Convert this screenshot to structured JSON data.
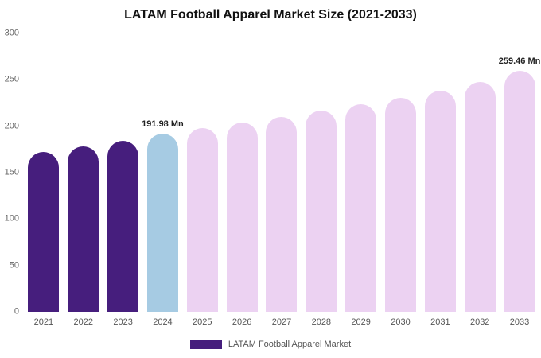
{
  "chart_data": {
    "type": "bar",
    "title": "LATAM Football Apparel Market Size (2021-2033)",
    "categories": [
      "2021",
      "2022",
      "2023",
      "2024",
      "2025",
      "2026",
      "2027",
      "2028",
      "2029",
      "2030",
      "2031",
      "2032",
      "2033"
    ],
    "values": [
      172,
      178,
      184,
      191.98,
      198,
      204,
      210,
      216.5,
      223.5,
      230.5,
      238.5,
      247.5,
      259.46
    ],
    "ylim": [
      0,
      300
    ],
    "yticks": [
      0,
      50,
      100,
      150,
      200,
      250,
      300
    ],
    "grid": false,
    "legend": "LATAM Football Apparel Market",
    "legend_position": "bottom",
    "annotations": [
      {
        "index": 3,
        "text": "191.98 Mn"
      },
      {
        "index": 12,
        "text": "259.46 Mn"
      }
    ],
    "colors": {
      "historical": "#461e7d",
      "current": "#a6cbe3",
      "forecast": "#ecd2f2"
    },
    "bar_roles": [
      "historical",
      "historical",
      "historical",
      "current",
      "forecast",
      "forecast",
      "forecast",
      "forecast",
      "forecast",
      "forecast",
      "forecast",
      "forecast",
      "forecast"
    ]
  }
}
